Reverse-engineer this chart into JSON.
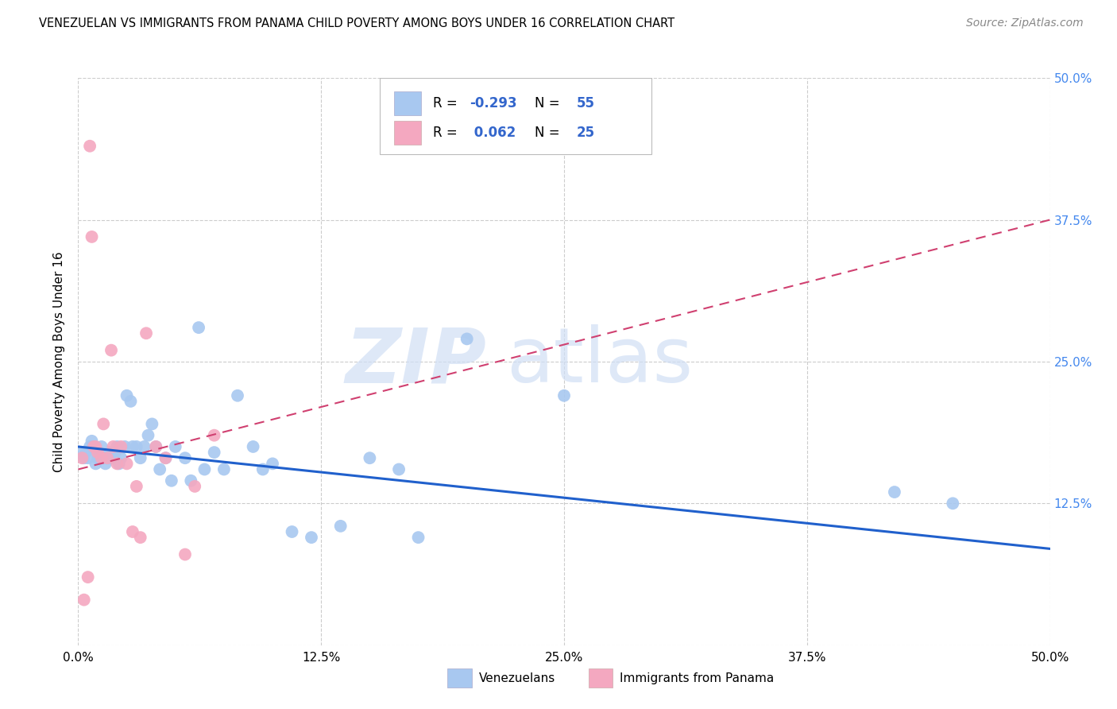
{
  "title": "VENEZUELAN VS IMMIGRANTS FROM PANAMA CHILD POVERTY AMONG BOYS UNDER 16 CORRELATION CHART",
  "source": "Source: ZipAtlas.com",
  "ylabel": "Child Poverty Among Boys Under 16",
  "xlim": [
    0,
    0.5
  ],
  "ylim": [
    0,
    0.5
  ],
  "xtick_labels": [
    "0.0%",
    "12.5%",
    "25.0%",
    "37.5%",
    "50.0%"
  ],
  "xtick_vals": [
    0,
    0.125,
    0.25,
    0.375,
    0.5
  ],
  "ytick_labels_right": [
    "50.0%",
    "37.5%",
    "25.0%",
    "12.5%"
  ],
  "ytick_vals_right": [
    0.5,
    0.375,
    0.25,
    0.125
  ],
  "R_venezuelan": -0.293,
  "N_venezuelan": 55,
  "R_panama": 0.062,
  "N_panama": 25,
  "venezuelan_color": "#a8c8f0",
  "panama_color": "#f4a8c0",
  "venezuelan_line_color": "#2060cc",
  "panama_line_color": "#d04070",
  "watermark_zip": "ZIP",
  "watermark_atlas": "atlas",
  "venezuelan_x": [
    0.002,
    0.003,
    0.004,
    0.005,
    0.006,
    0.007,
    0.008,
    0.009,
    0.01,
    0.01,
    0.012,
    0.013,
    0.014,
    0.015,
    0.016,
    0.017,
    0.018,
    0.019,
    0.02,
    0.021,
    0.022,
    0.024,
    0.025,
    0.027,
    0.028,
    0.03,
    0.032,
    0.034,
    0.036,
    0.038,
    0.04,
    0.042,
    0.045,
    0.048,
    0.05,
    0.055,
    0.058,
    0.062,
    0.065,
    0.07,
    0.075,
    0.082,
    0.09,
    0.095,
    0.1,
    0.11,
    0.12,
    0.135,
    0.15,
    0.165,
    0.175,
    0.2,
    0.25,
    0.42,
    0.45
  ],
  "venezuelan_y": [
    0.17,
    0.165,
    0.17,
    0.165,
    0.175,
    0.18,
    0.175,
    0.16,
    0.17,
    0.165,
    0.175,
    0.165,
    0.16,
    0.165,
    0.17,
    0.165,
    0.165,
    0.17,
    0.175,
    0.16,
    0.165,
    0.175,
    0.22,
    0.215,
    0.175,
    0.175,
    0.165,
    0.175,
    0.185,
    0.195,
    0.175,
    0.155,
    0.165,
    0.145,
    0.175,
    0.165,
    0.145,
    0.28,
    0.155,
    0.17,
    0.155,
    0.22,
    0.175,
    0.155,
    0.16,
    0.1,
    0.095,
    0.105,
    0.165,
    0.155,
    0.095,
    0.27,
    0.22,
    0.135,
    0.125
  ],
  "panama_x": [
    0.002,
    0.003,
    0.005,
    0.006,
    0.007,
    0.008,
    0.009,
    0.01,
    0.012,
    0.013,
    0.015,
    0.017,
    0.018,
    0.02,
    0.022,
    0.025,
    0.028,
    0.03,
    0.032,
    0.035,
    0.04,
    0.045,
    0.055,
    0.06,
    0.07
  ],
  "panama_y": [
    0.165,
    0.04,
    0.06,
    0.44,
    0.36,
    0.175,
    0.175,
    0.17,
    0.165,
    0.195,
    0.165,
    0.26,
    0.175,
    0.16,
    0.175,
    0.16,
    0.1,
    0.14,
    0.095,
    0.275,
    0.175,
    0.165,
    0.08,
    0.14,
    0.185
  ]
}
